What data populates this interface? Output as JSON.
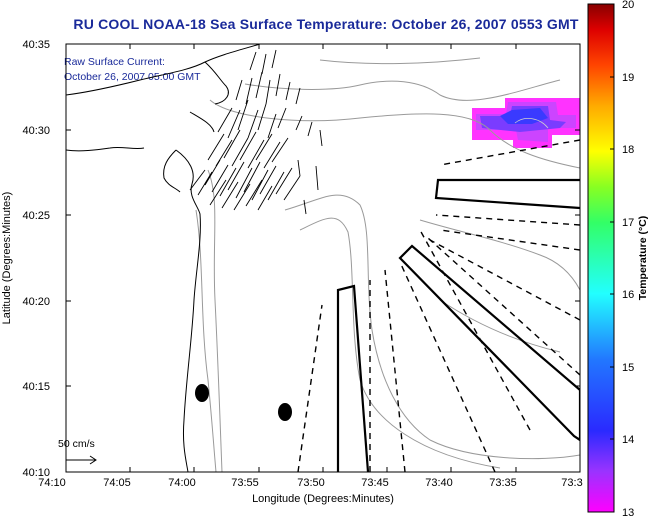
{
  "title": "RU COOL  NOAA-18  Sea Surface Temperature:  October 26, 2007 0553 GMT",
  "info": {
    "line1": "Raw Surface Current:",
    "line2": "October 26, 2007 05:00 GMT"
  },
  "axes": {
    "xlabel": "Longitude (Degrees:Minutes)",
    "ylabel": "Latitude (Degrees:Minutes)",
    "xticks": [
      "74:10",
      "74:05",
      "74:00",
      "73:55",
      "73:50",
      "73:45",
      "73:40",
      "73:35",
      "73:3"
    ],
    "yticks": [
      "40:35",
      "40:30",
      "40:25",
      "40:20",
      "40:15",
      "40:10"
    ]
  },
  "colorbar": {
    "label": "Temperature (°C)",
    "ticks": [
      "20",
      "19",
      "18",
      "17",
      "16",
      "15",
      "14",
      "13"
    ],
    "min": 13,
    "max": 20
  },
  "scale_label": "50 cm/s",
  "colors": {
    "title": "#1a2a9a",
    "sst_warm": "#ff33ff",
    "sst_cold": "#7a3cff"
  }
}
